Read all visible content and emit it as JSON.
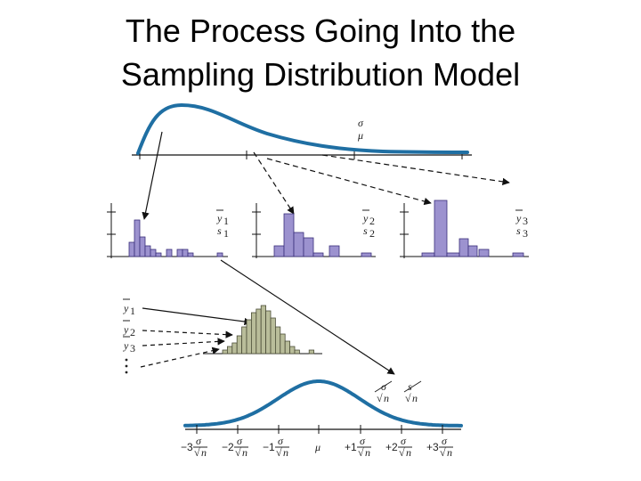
{
  "title": {
    "line1": "The Process Going Into the",
    "line2": "Sampling Distribution Model"
  },
  "population": {
    "param_sigma": "σ",
    "param_mu": "μ"
  },
  "samples": [
    {
      "mean_label": "y",
      "mean_sub": "1",
      "sd_label": "s",
      "sd_sub": "1"
    },
    {
      "mean_label": "y",
      "mean_sub": "2",
      "sd_label": "s",
      "sd_sub": "2"
    },
    {
      "mean_label": "y",
      "mean_sub": "3",
      "sd_label": "s",
      "sd_sub": "3"
    }
  ],
  "means_list": [
    {
      "label": "y",
      "sub": "1"
    },
    {
      "label": "y",
      "sub": "2"
    },
    {
      "label": "y",
      "sub": "3"
    }
  ],
  "sampling_params": {
    "sigma": "σ",
    "s": "s",
    "n": "n"
  },
  "axis_ticks": [
    {
      "prefix": "−3",
      "num": "σ",
      "den": "n"
    },
    {
      "prefix": "−2",
      "num": "σ",
      "den": "n"
    },
    {
      "prefix": "−1",
      "num": "σ",
      "den": "n"
    },
    {
      "prefix": "",
      "num": "μ",
      "den": ""
    },
    {
      "prefix": "+1",
      "num": "σ",
      "den": "n"
    },
    {
      "prefix": "+2",
      "num": "σ",
      "den": "n"
    },
    {
      "prefix": "+3",
      "num": "σ",
      "den": "n"
    }
  ],
  "colors": {
    "curve": "#1f6fa3",
    "sample_bar": "#9c92cf",
    "sample_bar_stroke": "#3a2f7a",
    "means_bar": "#b9bd9a",
    "means_bar_stroke": "#4b4d38"
  }
}
